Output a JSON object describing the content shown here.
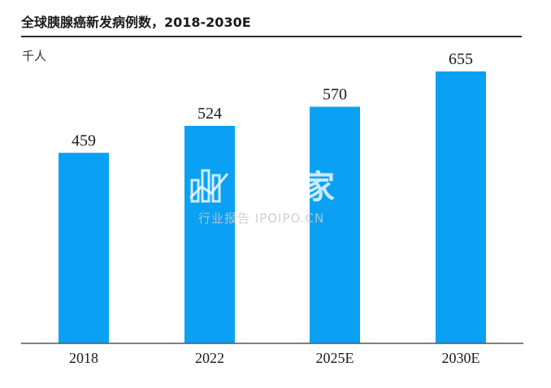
{
  "chart_data": {
    "type": "bar",
    "title": "全球胰腺癌新发病例数，2018-2030E",
    "unit": "千人",
    "categories": [
      "2018",
      "2022",
      "2025E",
      "2030E"
    ],
    "values": [
      459,
      524,
      570,
      655
    ],
    "data_labels": [
      "459",
      "524",
      "570",
      "655"
    ],
    "ylim": [
      0,
      700
    ],
    "grid": false,
    "legend": "none",
    "bar_color": "#0aa1f5"
  },
  "watermark": {
    "brand": "并购家",
    "subtitle": "行业报告 IPOIPO.CN"
  }
}
